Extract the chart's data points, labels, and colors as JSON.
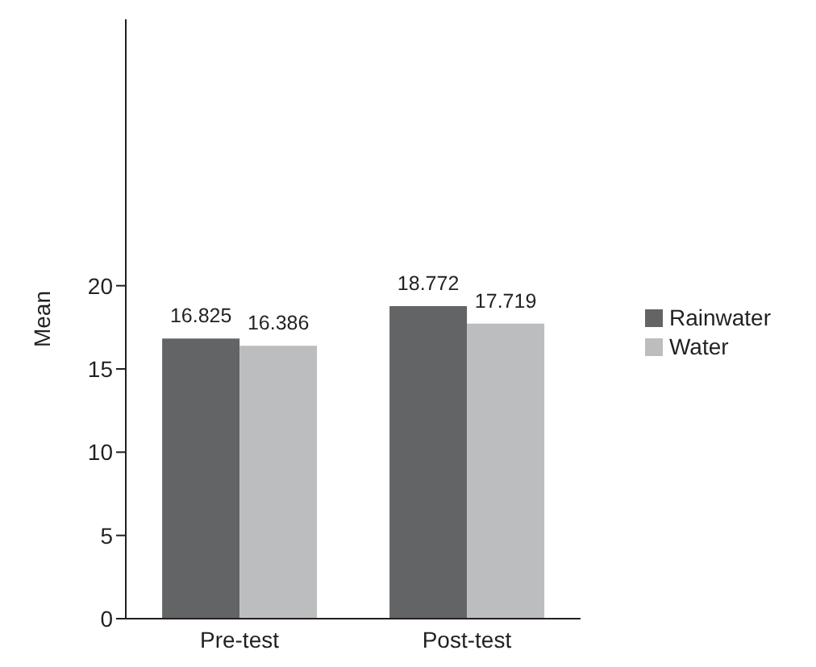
{
  "chart_data": {
    "type": "bar",
    "ylabel": "Mean",
    "categories": [
      "Pre-test",
      "Post-test"
    ],
    "series": [
      {
        "name": "Rainwater",
        "color": "#636466",
        "values": [
          16.825,
          18.772
        ]
      },
      {
        "name": "Water",
        "color": "#bcbdbf",
        "values": [
          16.386,
          17.719
        ]
      }
    ],
    "ylim": [
      0,
      36
    ],
    "yticks": [
      0,
      5,
      10,
      15,
      20
    ],
    "grid": false,
    "legend": "right",
    "data_labels": true
  }
}
